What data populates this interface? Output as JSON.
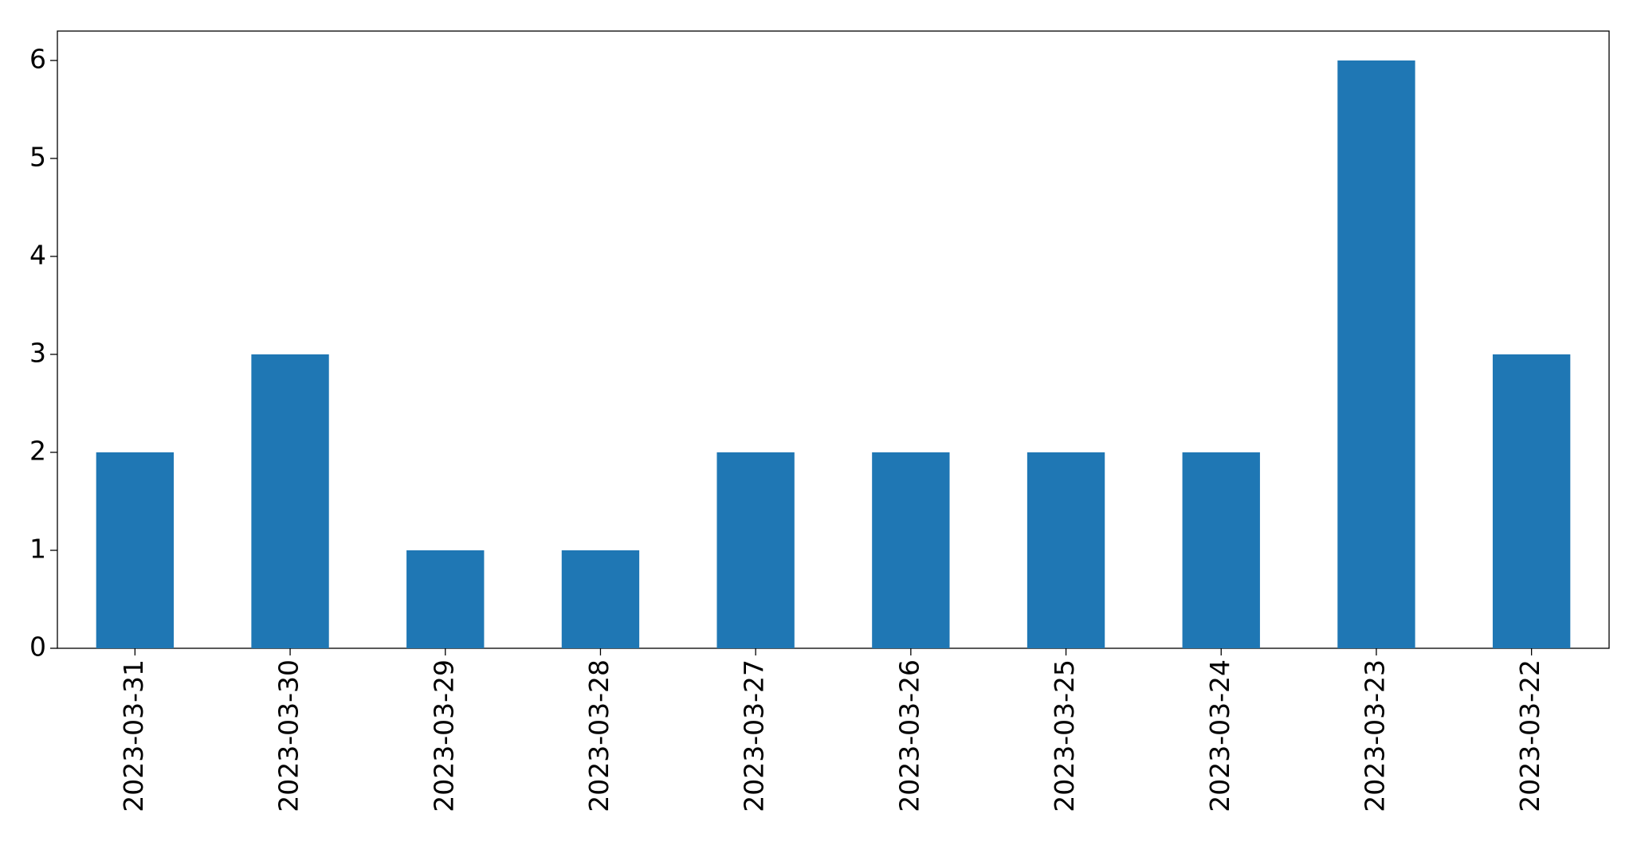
{
  "chart_data": {
    "type": "bar",
    "categories": [
      "2023-03-31",
      "2023-03-30",
      "2023-03-29",
      "2023-03-28",
      "2023-03-27",
      "2023-03-26",
      "2023-03-25",
      "2023-03-24",
      "2023-03-23",
      "2023-03-22"
    ],
    "values": [
      2,
      3,
      1,
      1,
      2,
      2,
      2,
      2,
      6,
      3
    ],
    "color": "#1f77b4",
    "ylim": [
      0,
      6.3
    ],
    "yticks": [
      0,
      1,
      2,
      3,
      4,
      5,
      6
    ],
    "grid": false
  }
}
